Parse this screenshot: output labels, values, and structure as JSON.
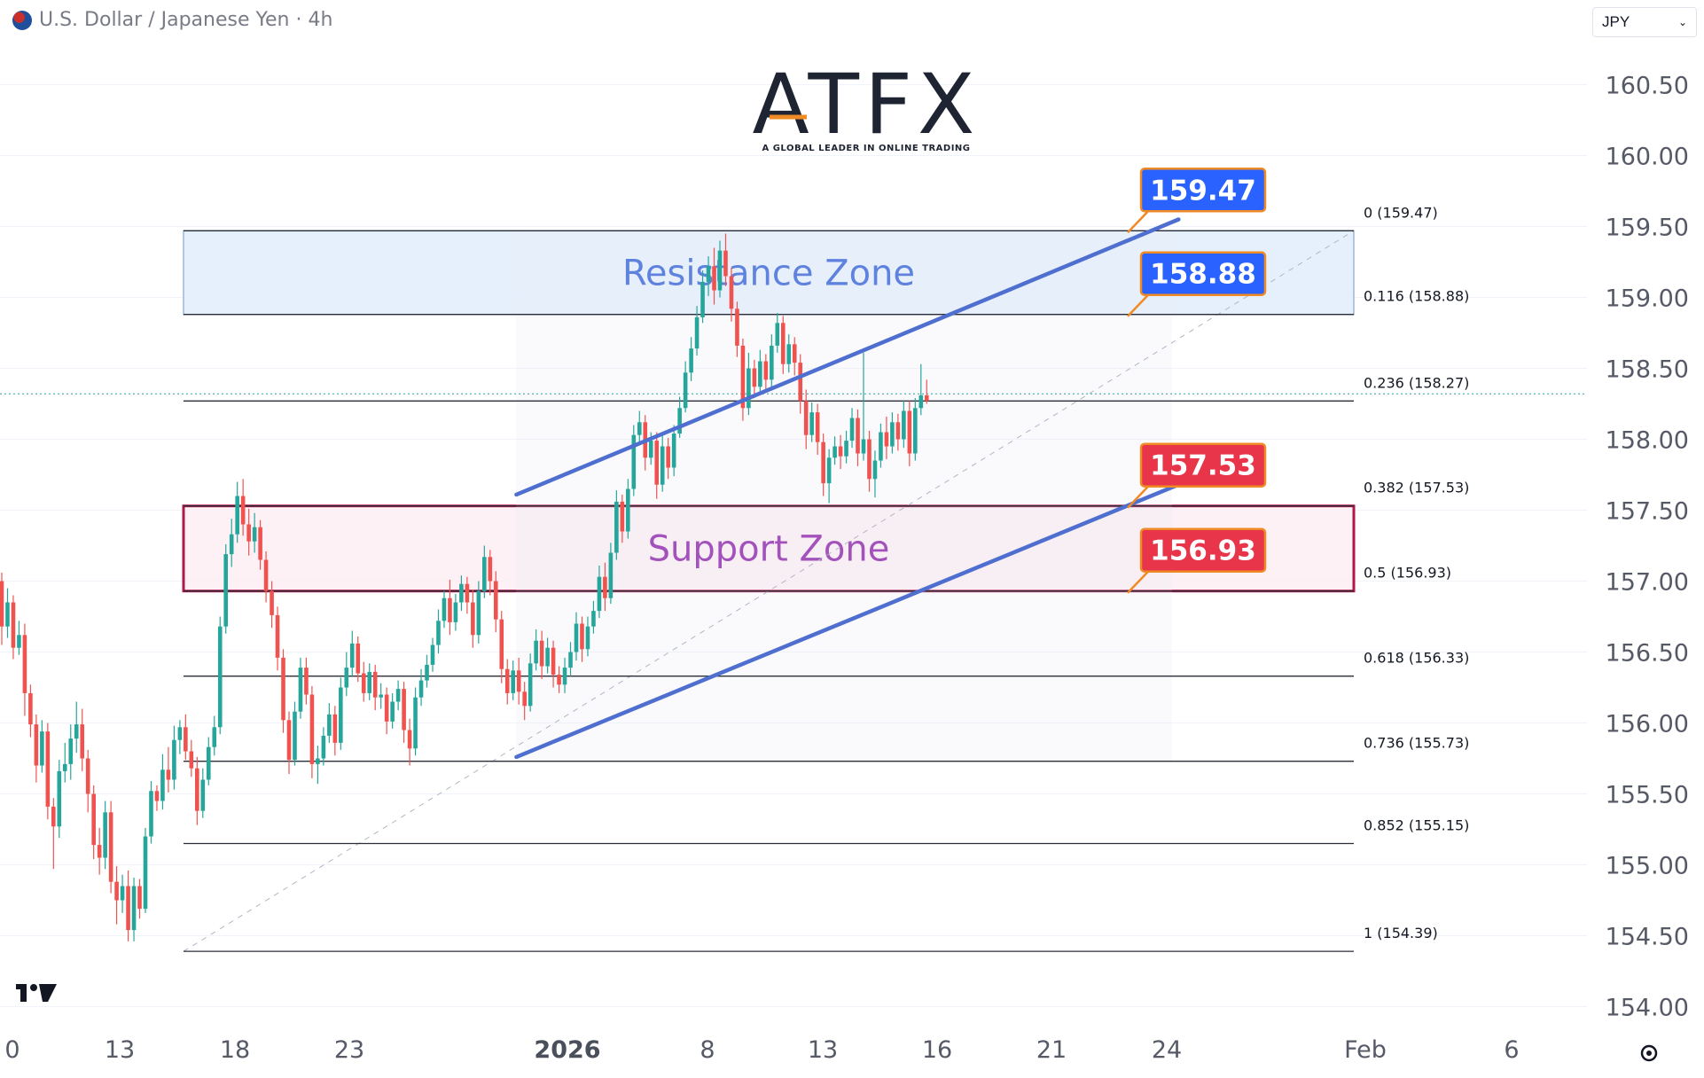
{
  "header": {
    "symbol_title": "U.S. Dollar / Japanese Yen · 4h",
    "currency": "JPY"
  },
  "logo": {
    "text": "ATFX",
    "tagline": "A GLOBAL LEADER IN ONLINE TRADING"
  },
  "colors": {
    "up": "#26a69a",
    "down": "#ef5350",
    "channel": "#4e6fcf",
    "resistance_fill": "#e3eefc",
    "support_fill": "#fdeef2",
    "support_border": "#b0184a",
    "tag_blue": "#2962ff",
    "tag_red": "#e8354a",
    "tag_border": "#f08a24"
  },
  "chart_data": {
    "type": "candlestick",
    "symbol": "USD/JPY",
    "timeframe": "4h",
    "y_axis": {
      "range": [
        153.8,
        160.8
      ],
      "ticks": [
        "154.00",
        "154.50",
        "155.00",
        "155.50",
        "156.00",
        "156.50",
        "157.00",
        "157.50",
        "158.00",
        "158.50",
        "159.00",
        "159.50",
        "160.00",
        "160.50"
      ]
    },
    "x_axis": {
      "ticks": [
        "0",
        "13",
        "18",
        "23",
        "2026",
        "8",
        "13",
        "16",
        "21",
        "24",
        "Feb",
        "6"
      ]
    },
    "fib_levels": [
      {
        "ratio": "0",
        "price": 159.47,
        "label": "0 (159.47)"
      },
      {
        "ratio": "0.116",
        "price": 158.88,
        "label": "0.116 (158.88)"
      },
      {
        "ratio": "0.236",
        "price": 158.27,
        "label": "0.236 (158.27)"
      },
      {
        "ratio": "0.382",
        "price": 157.53,
        "label": "0.382 (157.53)"
      },
      {
        "ratio": "0.5",
        "price": 156.93,
        "label": "0.5 (156.93)"
      },
      {
        "ratio": "0.618",
        "price": 156.33,
        "label": "0.618 (156.33)"
      },
      {
        "ratio": "0.736",
        "price": 155.73,
        "label": "0.736 (155.73)"
      },
      {
        "ratio": "0.852",
        "price": 155.15,
        "label": "0.852 (155.15)"
      },
      {
        "ratio": "1",
        "price": 154.39,
        "label": "1 (154.39)"
      }
    ],
    "zones": [
      {
        "name": "Resistance Zone",
        "top": 159.47,
        "bottom": 158.88
      },
      {
        "name": "Support Zone",
        "top": 157.53,
        "bottom": 156.93
      }
    ],
    "price_tags": [
      {
        "text": "159.47",
        "price": 159.47,
        "color": "blue"
      },
      {
        "text": "158.88",
        "price": 158.88,
        "color": "blue"
      },
      {
        "text": "157.53",
        "price": 157.53,
        "color": "red"
      },
      {
        "text": "156.93",
        "price": 156.93,
        "color": "red"
      }
    ],
    "channel": {
      "upper": [
        {
          "bar": 78,
          "price": 157.61
        },
        {
          "bar": 184,
          "price": 159.55
        }
      ],
      "lower": [
        {
          "bar": 78,
          "price": 155.76
        },
        {
          "bar": 184,
          "price": 157.68
        }
      ]
    },
    "last_price": 158.27,
    "candles": [
      [
        157.0,
        157.06,
        156.55,
        156.68
      ],
      [
        156.68,
        156.95,
        156.6,
        156.85
      ],
      [
        156.85,
        156.9,
        156.45,
        156.53
      ],
      [
        156.53,
        156.72,
        156.48,
        156.62
      ],
      [
        156.62,
        156.7,
        156.05,
        156.21
      ],
      [
        156.21,
        156.27,
        155.9,
        155.99
      ],
      [
        155.99,
        156.06,
        155.58,
        155.7
      ],
      [
        155.7,
        156.02,
        155.65,
        155.94
      ],
      [
        155.94,
        156.0,
        155.32,
        155.41
      ],
      [
        155.41,
        155.47,
        154.97,
        155.27
      ],
      [
        155.27,
        155.74,
        155.19,
        155.66
      ],
      [
        155.66,
        155.86,
        155.58,
        155.71
      ],
      [
        155.71,
        155.99,
        155.6,
        155.89
      ],
      [
        155.89,
        156.15,
        155.79,
        155.99
      ],
      [
        155.99,
        156.1,
        155.66,
        155.75
      ],
      [
        155.75,
        155.81,
        155.37,
        155.5
      ],
      [
        155.5,
        155.56,
        155.04,
        155.14
      ],
      [
        155.14,
        155.26,
        154.93,
        155.05
      ],
      [
        155.05,
        155.45,
        154.97,
        155.37
      ],
      [
        155.37,
        155.45,
        154.8,
        154.88
      ],
      [
        154.88,
        154.99,
        154.58,
        154.75
      ],
      [
        154.75,
        154.93,
        154.66,
        154.85
      ],
      [
        154.85,
        154.96,
        154.46,
        154.54
      ],
      [
        154.54,
        154.91,
        154.46,
        154.85
      ],
      [
        154.85,
        154.9,
        154.62,
        154.69
      ],
      [
        154.69,
        155.26,
        154.66,
        155.2
      ],
      [
        155.2,
        155.59,
        155.15,
        155.52
      ],
      [
        155.52,
        155.56,
        155.38,
        155.45
      ],
      [
        155.45,
        155.78,
        155.39,
        155.67
      ],
      [
        155.67,
        155.83,
        155.51,
        155.6
      ],
      [
        155.6,
        155.98,
        155.53,
        155.88
      ],
      [
        155.88,
        156.02,
        155.78,
        155.97
      ],
      [
        155.97,
        156.06,
        155.74,
        155.8
      ],
      [
        155.8,
        155.88,
        155.62,
        155.68
      ],
      [
        155.68,
        155.76,
        155.28,
        155.38
      ],
      [
        155.38,
        155.68,
        155.33,
        155.6
      ],
      [
        155.6,
        155.9,
        155.56,
        155.83
      ],
      [
        155.83,
        156.05,
        155.77,
        155.97
      ],
      [
        155.97,
        156.75,
        155.92,
        156.68
      ],
      [
        156.68,
        157.26,
        156.63,
        157.19
      ],
      [
        157.19,
        157.44,
        157.1,
        157.33
      ],
      [
        157.33,
        157.7,
        157.27,
        157.6
      ],
      [
        157.6,
        157.72,
        157.32,
        157.4
      ],
      [
        157.4,
        157.51,
        157.18,
        157.28
      ],
      [
        157.28,
        157.48,
        157.2,
        157.38
      ],
      [
        157.38,
        157.43,
        157.08,
        157.15
      ],
      [
        157.15,
        157.21,
        156.85,
        156.93
      ],
      [
        156.93,
        157.0,
        156.67,
        156.76
      ],
      [
        156.76,
        156.82,
        156.37,
        156.46
      ],
      [
        156.46,
        156.52,
        155.93,
        156.02
      ],
      [
        156.02,
        156.08,
        155.64,
        155.74
      ],
      [
        155.74,
        156.15,
        155.7,
        156.08
      ],
      [
        156.08,
        156.46,
        156.03,
        156.39
      ],
      [
        156.39,
        156.46,
        156.13,
        156.2
      ],
      [
        156.2,
        156.26,
        155.61,
        155.71
      ],
      [
        155.71,
        155.84,
        155.57,
        155.75
      ],
      [
        155.75,
        155.97,
        155.7,
        155.91
      ],
      [
        155.91,
        156.14,
        155.86,
        156.06
      ],
      [
        156.06,
        156.12,
        155.77,
        155.86
      ],
      [
        155.86,
        156.32,
        155.81,
        156.25
      ],
      [
        156.25,
        156.5,
        156.19,
        156.39
      ],
      [
        156.39,
        156.65,
        156.33,
        156.56
      ],
      [
        156.56,
        156.61,
        156.29,
        156.35
      ],
      [
        156.35,
        156.43,
        156.15,
        156.21
      ],
      [
        156.21,
        156.42,
        156.16,
        156.36
      ],
      [
        156.36,
        156.41,
        156.09,
        156.18
      ],
      [
        156.18,
        156.28,
        156.1,
        156.2
      ],
      [
        156.2,
        156.25,
        155.92,
        156.01
      ],
      [
        156.01,
        156.21,
        155.96,
        156.15
      ],
      [
        156.15,
        156.3,
        156.09,
        156.24
      ],
      [
        156.24,
        156.29,
        155.86,
        155.95
      ],
      [
        155.95,
        156.03,
        155.7,
        155.82
      ],
      [
        155.82,
        156.25,
        155.77,
        156.18
      ],
      [
        156.18,
        156.38,
        156.12,
        156.3
      ],
      [
        156.3,
        156.48,
        156.25,
        156.41
      ],
      [
        156.41,
        156.6,
        156.36,
        156.55
      ],
      [
        156.55,
        156.8,
        156.49,
        156.72
      ],
      [
        156.72,
        156.93,
        156.67,
        156.88
      ],
      [
        156.88,
        157.01,
        156.62,
        156.71
      ],
      [
        156.71,
        156.91,
        156.65,
        156.85
      ],
      [
        156.85,
        157.04,
        156.79,
        156.98
      ],
      [
        156.98,
        157.03,
        156.77,
        156.85
      ],
      [
        156.85,
        156.94,
        156.53,
        156.62
      ],
      [
        156.62,
        157.0,
        156.56,
        156.93
      ],
      [
        156.93,
        157.25,
        156.88,
        157.17
      ],
      [
        157.17,
        157.22,
        156.9,
        157.0
      ],
      [
        157.0,
        157.07,
        156.64,
        156.73
      ],
      [
        156.73,
        156.79,
        156.28,
        156.38
      ],
      [
        156.38,
        156.45,
        156.13,
        156.21
      ],
      [
        156.21,
        156.44,
        156.16,
        156.37
      ],
      [
        156.37,
        156.46,
        156.13,
        156.22
      ],
      [
        156.22,
        156.29,
        156.02,
        156.12
      ],
      [
        156.12,
        156.49,
        156.08,
        156.42
      ],
      [
        156.42,
        156.66,
        156.37,
        156.58
      ],
      [
        156.58,
        156.65,
        156.31,
        156.4
      ],
      [
        156.4,
        156.6,
        156.35,
        156.53
      ],
      [
        156.53,
        156.58,
        156.25,
        156.34
      ],
      [
        156.34,
        156.4,
        156.21,
        156.27
      ],
      [
        156.27,
        156.46,
        156.21,
        156.39
      ],
      [
        156.39,
        156.57,
        156.33,
        156.5
      ],
      [
        156.5,
        156.78,
        156.44,
        156.7
      ],
      [
        156.7,
        156.75,
        156.43,
        156.52
      ],
      [
        156.52,
        156.75,
        156.47,
        156.68
      ],
      [
        156.68,
        156.86,
        156.63,
        156.79
      ],
      [
        156.79,
        157.11,
        156.74,
        157.03
      ],
      [
        157.03,
        157.13,
        156.79,
        156.88
      ],
      [
        156.88,
        157.27,
        156.84,
        157.2
      ],
      [
        157.2,
        157.64,
        157.15,
        157.56
      ],
      [
        157.56,
        157.61,
        157.27,
        157.35
      ],
      [
        157.35,
        157.72,
        157.3,
        157.65
      ],
      [
        157.65,
        158.1,
        157.6,
        158.03
      ],
      [
        158.03,
        158.2,
        157.98,
        158.12
      ],
      [
        158.12,
        158.17,
        157.78,
        157.87
      ],
      [
        157.87,
        158.05,
        157.82,
        157.99
      ],
      [
        157.99,
        158.05,
        157.58,
        157.68
      ],
      [
        157.68,
        158.03,
        157.63,
        157.95
      ],
      [
        157.95,
        158.01,
        157.72,
        157.8
      ],
      [
        157.8,
        158.1,
        157.74,
        158.04
      ],
      [
        158.04,
        158.3,
        158.01,
        158.22
      ],
      [
        158.22,
        158.55,
        158.19,
        158.47
      ],
      [
        158.47,
        158.72,
        158.41,
        158.64
      ],
      [
        158.64,
        158.94,
        158.59,
        158.86
      ],
      [
        158.86,
        159.19,
        158.82,
        159.11
      ],
      [
        159.11,
        159.29,
        159.01,
        159.22
      ],
      [
        159.22,
        159.35,
        158.95,
        159.05
      ],
      [
        159.05,
        159.4,
        159.0,
        159.33
      ],
      [
        159.33,
        159.45,
        159.08,
        159.15
      ],
      [
        159.15,
        159.21,
        158.83,
        158.92
      ],
      [
        158.92,
        158.97,
        158.58,
        158.66
      ],
      [
        158.66,
        158.71,
        158.13,
        158.22
      ],
      [
        158.22,
        158.61,
        158.17,
        158.5
      ],
      [
        158.5,
        158.56,
        158.29,
        158.37
      ],
      [
        158.37,
        158.63,
        158.32,
        158.55
      ],
      [
        158.55,
        158.6,
        158.33,
        158.42
      ],
      [
        158.42,
        158.74,
        158.36,
        158.66
      ],
      [
        158.66,
        158.89,
        158.61,
        158.82
      ],
      [
        158.82,
        158.87,
        158.46,
        158.53
      ],
      [
        158.53,
        158.74,
        158.47,
        158.67
      ],
      [
        158.67,
        158.72,
        158.45,
        158.54
      ],
      [
        158.54,
        158.6,
        158.18,
        158.27
      ],
      [
        158.27,
        158.35,
        157.93,
        158.03
      ],
      [
        158.03,
        158.26,
        157.98,
        158.19
      ],
      [
        158.19,
        158.25,
        157.89,
        157.98
      ],
      [
        157.98,
        158.04,
        157.6,
        157.69
      ],
      [
        157.69,
        157.93,
        157.55,
        157.87
      ],
      [
        157.87,
        158.02,
        157.82,
        157.95
      ],
      [
        157.95,
        158.03,
        157.79,
        157.88
      ],
      [
        157.88,
        158.06,
        157.83,
        157.99
      ],
      [
        157.99,
        158.22,
        157.94,
        158.15
      ],
      [
        158.15,
        158.21,
        157.81,
        157.9
      ],
      [
        157.9,
        158.61,
        157.85,
        158.0
      ],
      [
        158.0,
        158.06,
        157.63,
        157.72
      ],
      [
        157.72,
        157.92,
        157.59,
        157.85
      ],
      [
        157.85,
        158.11,
        157.8,
        158.05
      ],
      [
        158.05,
        158.16,
        157.86,
        157.95
      ],
      [
        157.95,
        158.19,
        157.9,
        158.12
      ],
      [
        158.12,
        158.18,
        157.92,
        158.0
      ],
      [
        158.0,
        158.27,
        157.94,
        158.2
      ],
      [
        158.2,
        158.27,
        157.81,
        157.9
      ],
      [
        157.9,
        158.29,
        157.85,
        158.22
      ],
      [
        158.22,
        158.53,
        158.17,
        158.31
      ],
      [
        158.31,
        158.42,
        158.25,
        158.27
      ]
    ]
  }
}
